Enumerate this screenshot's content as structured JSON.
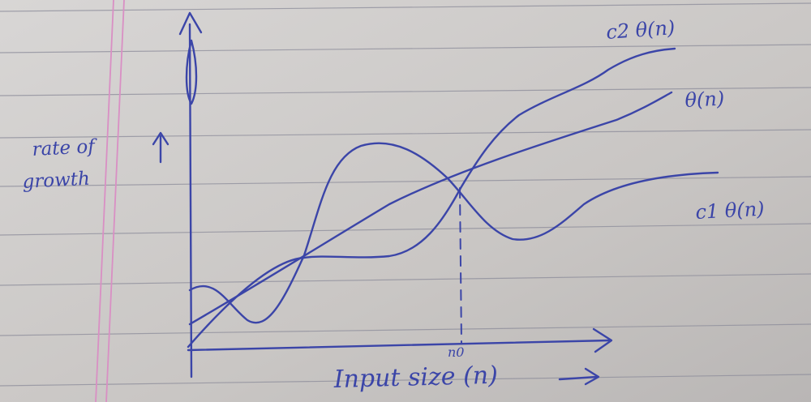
{
  "labels": {
    "y_axis_line1": "rate of",
    "y_axis_line2": "growth",
    "x_axis": "Input size (n)",
    "n0_marker": "n0",
    "curve_upper": "c2 θ(n)",
    "curve_middle": "θ(n)",
    "curve_lower": "c1 θ(n)"
  },
  "colors": {
    "paper": "#cdcac8",
    "ruled_line": "#8c8c9a",
    "margin_line": "#d98fc4",
    "ink": "#3b45a8"
  }
}
